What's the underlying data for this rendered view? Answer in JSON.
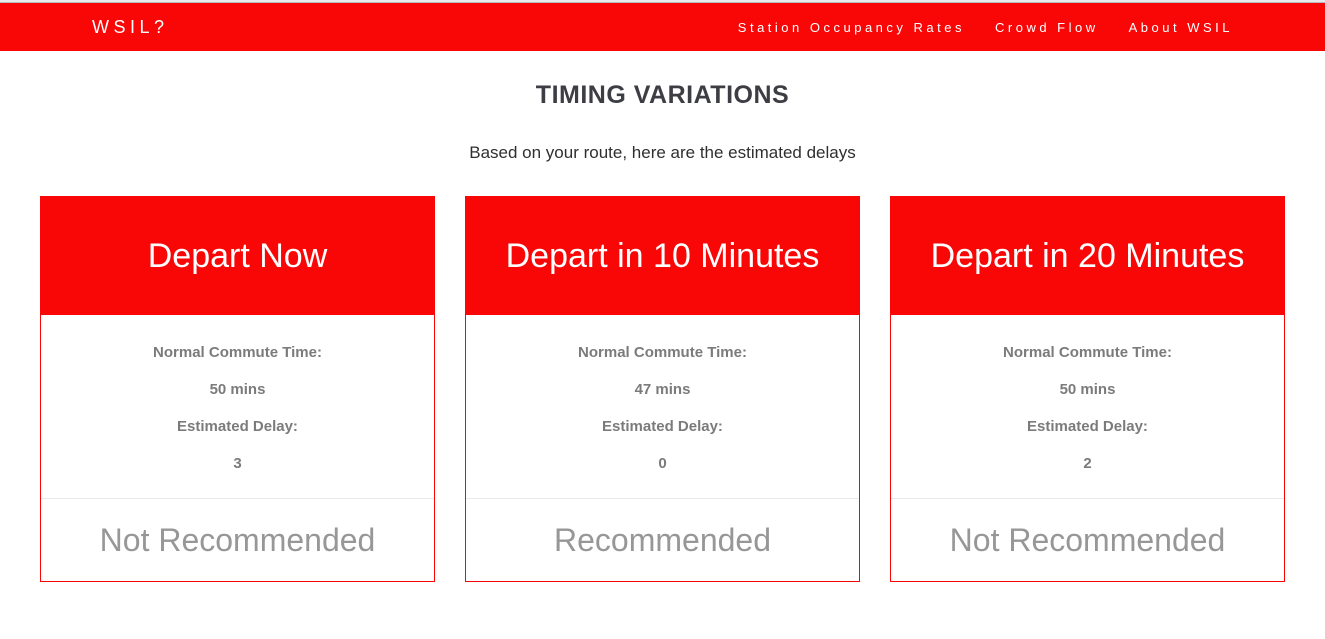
{
  "theme": {
    "accent_red": "#f90707",
    "body_label_text": "#7b7b7b",
    "verdict_text": "#979797"
  },
  "header": {
    "logo": "WSIL?",
    "nav": [
      {
        "label": "Station Occupancy Rates"
      },
      {
        "label": "Crowd Flow"
      },
      {
        "label": "About WSIL"
      }
    ]
  },
  "main": {
    "title": "TIMING VARIATIONS",
    "subtitle": "Based on your route, here are the estimated delays",
    "cards": [
      {
        "title": "Depart Now",
        "normal_commute_label": "Normal Commute Time:",
        "normal_commute_value": "50 mins",
        "delay_label": "Estimated Delay:",
        "delay_value": "3",
        "verdict": "Not Recommended"
      },
      {
        "title": "Depart in 10 Minutes",
        "normal_commute_label": "Normal Commute Time:",
        "normal_commute_value": "47 mins",
        "delay_label": "Estimated Delay:",
        "delay_value": "0",
        "verdict": "Recommended"
      },
      {
        "title": "Depart in 20 Minutes",
        "normal_commute_label": "Normal Commute Time:",
        "normal_commute_value": "50 mins",
        "delay_label": "Estimated Delay:",
        "delay_value": "2",
        "verdict": "Not Recommended"
      }
    ]
  }
}
